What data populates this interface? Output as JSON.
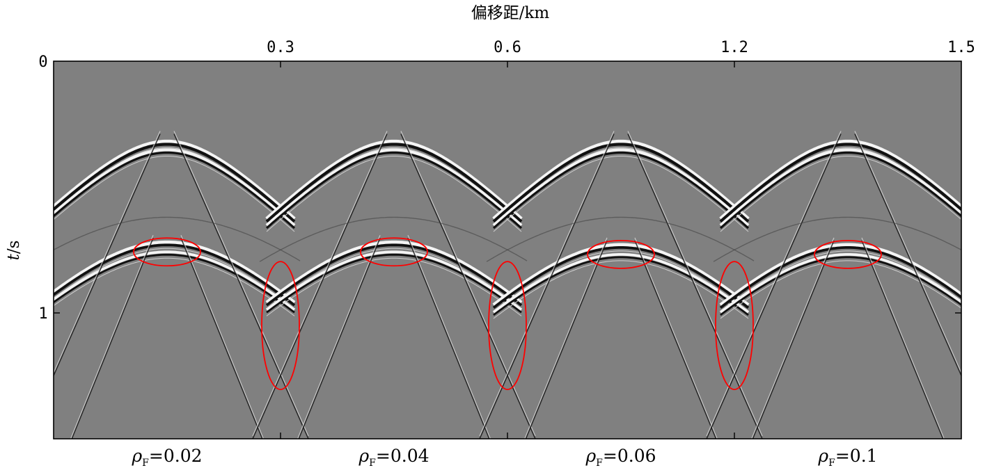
{
  "chart_data": {
    "type": "heatmap",
    "title": "",
    "xlabel": "偏移距/km",
    "ylabel_var": "t",
    "ylabel_unit": "/s",
    "x_tick_labels": [
      "0.3",
      "0.6",
      "1.2",
      "1.5"
    ],
    "y_tick_labels": [
      "0",
      "1"
    ],
    "ylim": [
      0,
      1.5
    ],
    "colormap": "grayscale",
    "background_color": "#808080",
    "highlight_color": "#ff0000",
    "panels": [
      {
        "param_symbol": "ρ",
        "param_subscript": "F",
        "param_value": "=0.02",
        "apex_time": 0.33,
        "secondary_time": 0.73,
        "gather_offset": 0.15
      },
      {
        "param_symbol": "ρ",
        "param_subscript": "F",
        "param_value": "=0.04",
        "apex_time": 0.33,
        "secondary_time": 0.73,
        "gather_offset": 0.15
      },
      {
        "param_symbol": "ρ",
        "param_subscript": "F",
        "param_value": "=0.06",
        "apex_time": 0.33,
        "secondary_time": 0.74,
        "gather_offset": 0.15
      },
      {
        "param_symbol": "ρ",
        "param_subscript": "F",
        "param_value": "=0.1",
        "apex_time": 0.33,
        "secondary_time": 0.74,
        "gather_offset": 0.15
      }
    ],
    "highlights": [
      {
        "shape": "ellipse",
        "panel": 1,
        "location": "reflection-apex"
      },
      {
        "shape": "ellipse",
        "panel": 1,
        "location": "gather-boundary"
      },
      {
        "shape": "ellipse",
        "panel": 2,
        "location": "reflection-apex"
      },
      {
        "shape": "ellipse",
        "panel": 2,
        "location": "gather-boundary"
      },
      {
        "shape": "ellipse",
        "panel": 3,
        "location": "reflection-apex"
      },
      {
        "shape": "ellipse",
        "panel": 3,
        "location": "gather-boundary"
      },
      {
        "shape": "ellipse",
        "panel": 4,
        "location": "reflection-apex"
      }
    ]
  }
}
